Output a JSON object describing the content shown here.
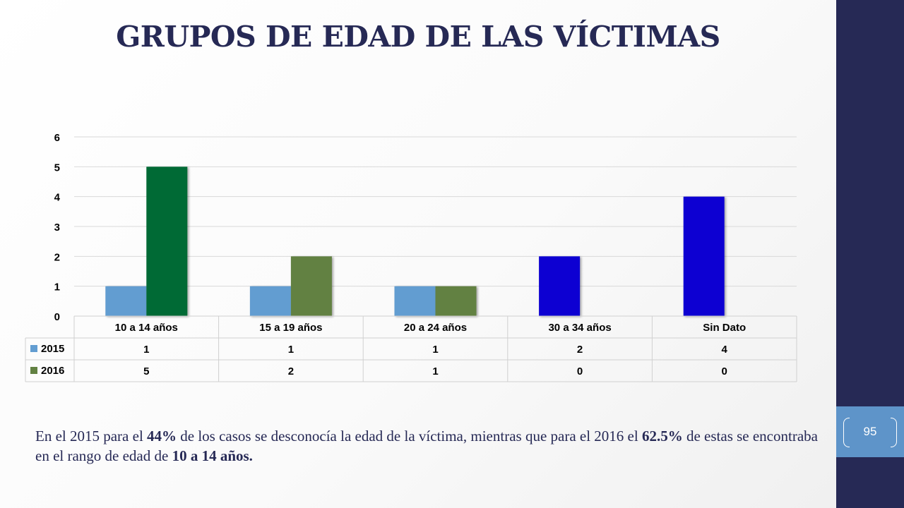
{
  "slide": {
    "title": "GRUPOS DE EDAD DE LAS VÍCTIMAS",
    "page_number": "95"
  },
  "colors": {
    "side_band": "#262955",
    "page_tab": "#5e94c9",
    "title": "#262955",
    "series_2015": "#629dd1",
    "series_2016": "#628142",
    "highlight_2015": "#0c00d2",
    "highlight_2016": "#006a34"
  },
  "chart_data": {
    "type": "bar",
    "categories": [
      "10 a 14 años",
      "15 a 19 años",
      "20 a 24 años",
      "30 a 34 años",
      "Sin Dato"
    ],
    "series": [
      {
        "name": "2015",
        "values": [
          1,
          1,
          1,
          2,
          4
        ]
      },
      {
        "name": "2016",
        "values": [
          5,
          2,
          1,
          0,
          0
        ]
      }
    ],
    "highlighted_bars": [
      {
        "series": "2016",
        "category": "10 a 14 años",
        "color": "#006a34"
      },
      {
        "series": "2015",
        "category": "30 a 34 años",
        "color": "#0c00d2"
      },
      {
        "series": "2015",
        "category": "Sin Dato",
        "color": "#0c00d2"
      }
    ],
    "y_ticks": [
      0,
      1,
      2,
      3,
      4,
      5,
      6
    ],
    "ylim": [
      0,
      6
    ],
    "grid": true,
    "legend": "data-table",
    "data_table": true
  },
  "summary": {
    "t1": "En el 2015 para el ",
    "b1": "44%",
    "t2": " de los casos se desconocía la edad de la víctima, mientras que para el 2016 el ",
    "b2": "62.5%",
    "t3": " de estas se encontraba en el rango de edad de ",
    "b3": "10 a 14 años."
  }
}
